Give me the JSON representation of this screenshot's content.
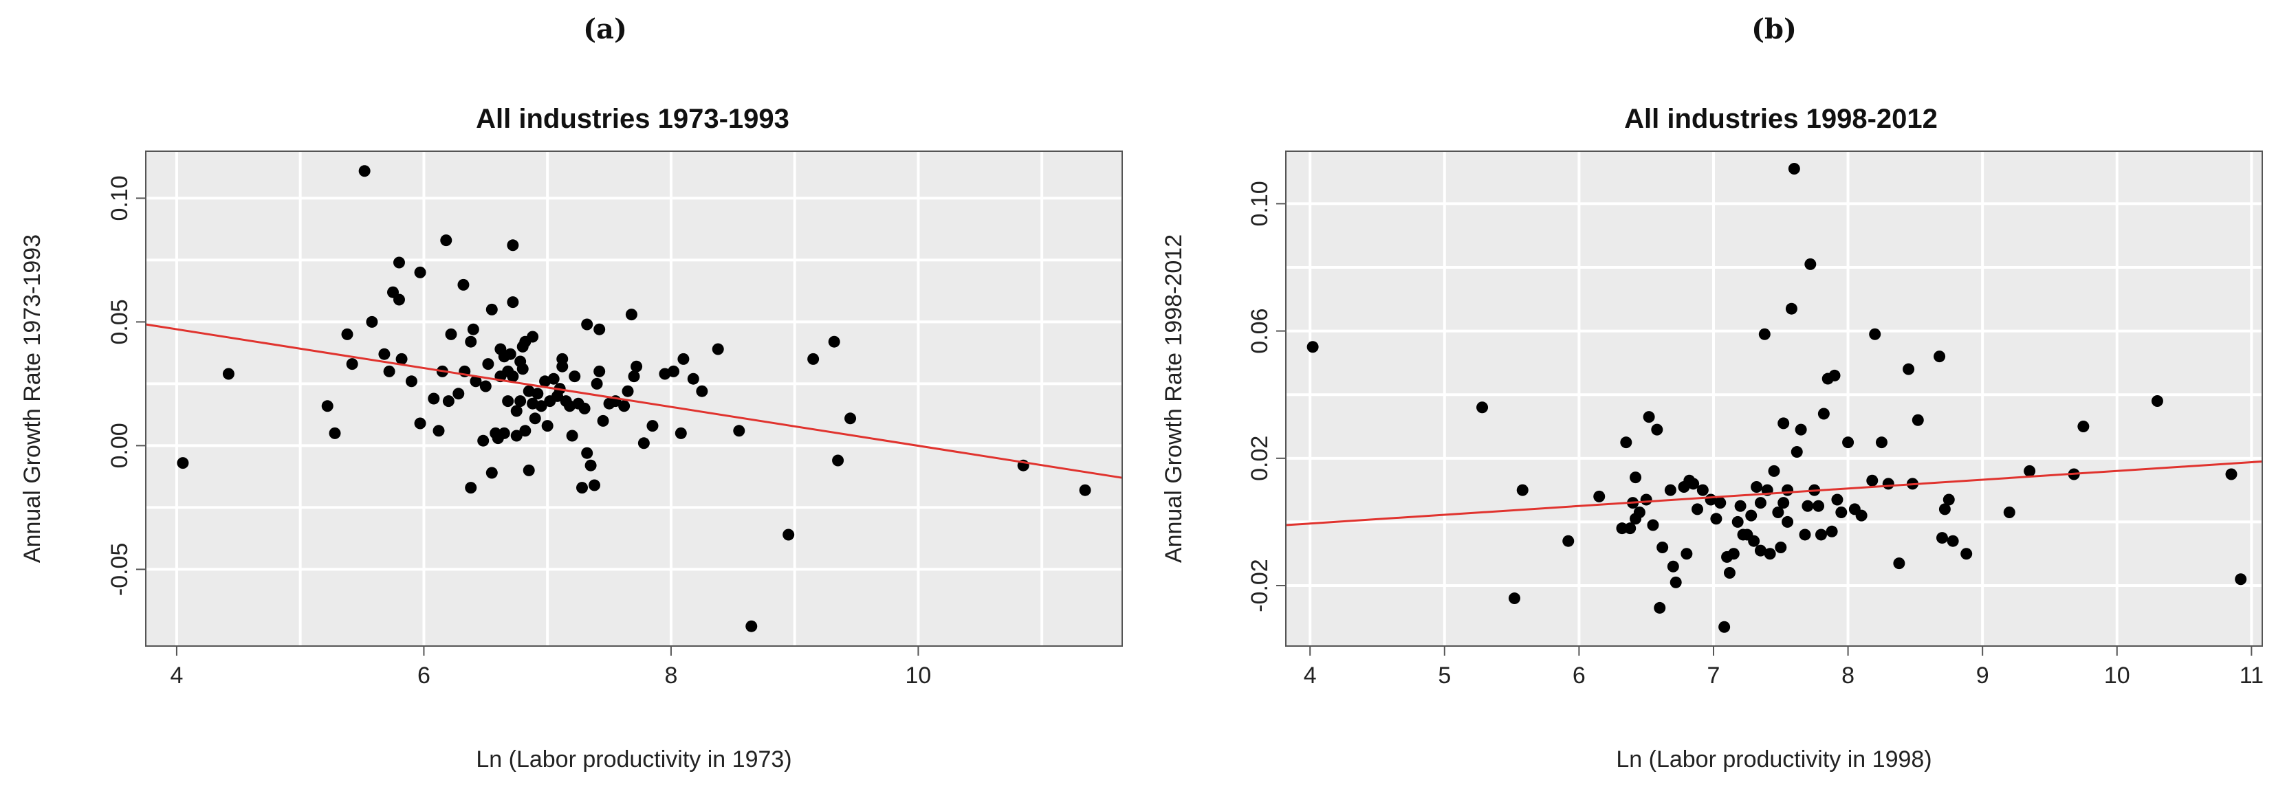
{
  "panels": [
    {
      "letter": "(a)"
    },
    {
      "letter": "(b)"
    }
  ],
  "chart_data": [
    {
      "type": "scatter",
      "title": "All industries 1973-1993",
      "xlabel": "Ln (Labor productivity in 1973)",
      "ylabel": "Annual Growth Rate 1973-1993",
      "xlim": [
        3.75,
        11.65
      ],
      "ylim": [
        -0.081,
        0.119
      ],
      "xticks": [
        4,
        6,
        8,
        10
      ],
      "xtick_labels": [
        "4",
        "6",
        "8",
        "10"
      ],
      "yticks": [
        -0.05,
        0.0,
        0.05,
        0.1
      ],
      "ytick_labels": [
        "-0.05",
        "0.00",
        "0.05",
        "0.10"
      ],
      "xgrid": [
        5,
        7,
        9,
        11
      ],
      "ygrid": [
        -0.025,
        0.025,
        0.075
      ],
      "grid": true,
      "background": "#ebebeb",
      "point_color": "#000000",
      "regression_color": "#e0332e",
      "regression_line": {
        "x": [
          3.75,
          11.65
        ],
        "y": [
          0.049,
          -0.013
        ]
      },
      "points": [
        [
          4.05,
          -0.007
        ],
        [
          4.42,
          0.029
        ],
        [
          5.22,
          0.016
        ],
        [
          5.28,
          0.005
        ],
        [
          5.38,
          0.045
        ],
        [
          5.42,
          0.033
        ],
        [
          5.52,
          0.111
        ],
        [
          5.58,
          0.05
        ],
        [
          5.68,
          0.037
        ],
        [
          5.72,
          0.03
        ],
        [
          5.75,
          0.062
        ],
        [
          5.8,
          0.074
        ],
        [
          5.82,
          0.035
        ],
        [
          5.8,
          0.059
        ],
        [
          5.9,
          0.026
        ],
        [
          5.97,
          0.07
        ],
        [
          5.97,
          0.009
        ],
        [
          6.08,
          0.019
        ],
        [
          6.12,
          0.006
        ],
        [
          6.15,
          0.03
        ],
        [
          6.18,
          0.083
        ],
        [
          6.2,
          0.018
        ],
        [
          6.22,
          0.045
        ],
        [
          6.28,
          0.021
        ],
        [
          6.32,
          0.065
        ],
        [
          6.33,
          0.03
        ],
        [
          6.38,
          -0.017
        ],
        [
          6.38,
          0.042
        ],
        [
          6.4,
          0.047
        ],
        [
          6.42,
          0.026
        ],
        [
          6.48,
          0.002
        ],
        [
          6.5,
          0.024
        ],
        [
          6.52,
          0.033
        ],
        [
          6.55,
          0.055
        ],
        [
          6.55,
          -0.011
        ],
        [
          6.58,
          0.005
        ],
        [
          6.6,
          0.003
        ],
        [
          6.62,
          0.039
        ],
        [
          6.62,
          0.028
        ],
        [
          6.65,
          0.005
        ],
        [
          6.65,
          0.036
        ],
        [
          6.68,
          0.03
        ],
        [
          6.68,
          0.018
        ],
        [
          6.7,
          0.037
        ],
        [
          6.72,
          0.028
        ],
        [
          6.72,
          0.081
        ],
        [
          6.72,
          0.058
        ],
        [
          6.75,
          0.014
        ],
        [
          6.75,
          0.004
        ],
        [
          6.78,
          0.034
        ],
        [
          6.78,
          0.018
        ],
        [
          6.8,
          0.04
        ],
        [
          6.8,
          0.031
        ],
        [
          6.82,
          0.042
        ],
        [
          6.82,
          0.006
        ],
        [
          6.85,
          0.022
        ],
        [
          6.85,
          -0.01
        ],
        [
          6.88,
          0.044
        ],
        [
          6.88,
          0.017
        ],
        [
          6.9,
          0.011
        ],
        [
          6.92,
          0.021
        ],
        [
          6.95,
          0.016
        ],
        [
          6.98,
          0.026
        ],
        [
          7.0,
          0.008
        ],
        [
          7.02,
          0.018
        ],
        [
          7.05,
          0.027
        ],
        [
          7.08,
          0.02
        ],
        [
          7.1,
          0.023
        ],
        [
          7.12,
          0.032
        ],
        [
          7.12,
          0.035
        ],
        [
          7.15,
          0.018
        ],
        [
          7.18,
          0.016
        ],
        [
          7.2,
          0.004
        ],
        [
          7.22,
          0.028
        ],
        [
          7.25,
          0.017
        ],
        [
          7.28,
          -0.017
        ],
        [
          7.3,
          0.015
        ],
        [
          7.32,
          -0.003
        ],
        [
          7.32,
          0.049
        ],
        [
          7.35,
          -0.008
        ],
        [
          7.38,
          -0.016
        ],
        [
          7.4,
          0.025
        ],
        [
          7.42,
          0.047
        ],
        [
          7.42,
          0.03
        ],
        [
          7.45,
          0.01
        ],
        [
          7.5,
          0.017
        ],
        [
          7.55,
          0.018
        ],
        [
          7.62,
          0.016
        ],
        [
          7.65,
          0.022
        ],
        [
          7.68,
          0.053
        ],
        [
          7.7,
          0.028
        ],
        [
          7.72,
          0.032
        ],
        [
          7.78,
          0.001
        ],
        [
          7.85,
          0.008
        ],
        [
          7.95,
          0.029
        ],
        [
          8.02,
          0.03
        ],
        [
          8.08,
          0.005
        ],
        [
          8.1,
          0.035
        ],
        [
          8.18,
          0.027
        ],
        [
          8.25,
          0.022
        ],
        [
          8.38,
          0.039
        ],
        [
          8.55,
          0.006
        ],
        [
          8.65,
          -0.073
        ],
        [
          8.95,
          -0.036
        ],
        [
          9.15,
          0.035
        ],
        [
          9.32,
          0.042
        ],
        [
          9.35,
          -0.006
        ],
        [
          9.45,
          0.011
        ],
        [
          10.85,
          -0.008
        ],
        [
          11.35,
          -0.018
        ]
      ]
    },
    {
      "type": "scatter",
      "title": "All industries 1998-2012",
      "xlabel": "Ln (Labor productivity in 1998)",
      "ylabel": "Annual Growth Rate 1998-2012",
      "xlim": [
        3.82,
        11.08
      ],
      "ylim": [
        -0.039,
        0.1165
      ],
      "xticks": [
        4,
        5,
        6,
        7,
        8,
        9,
        10,
        11
      ],
      "xtick_labels": [
        "4",
        "5",
        "6",
        "7",
        "8",
        "9",
        "10",
        "11"
      ],
      "yticks": [
        -0.02,
        0.02,
        0.06,
        0.1
      ],
      "ytick_labels": [
        "-0.02",
        "0.02",
        "0.06",
        "0.10"
      ],
      "xgrid": [],
      "ygrid": [
        0.0,
        0.04,
        0.08
      ],
      "grid": true,
      "background": "#ebebeb",
      "point_color": "#000000",
      "regression_color": "#e0332e",
      "regression_line": {
        "x": [
          3.82,
          11.08
        ],
        "y": [
          -0.001,
          0.019
        ]
      },
      "points": [
        [
          4.02,
          0.055
        ],
        [
          5.28,
          0.036
        ],
        [
          5.52,
          -0.024
        ],
        [
          5.58,
          0.01
        ],
        [
          5.92,
          -0.006
        ],
        [
          6.15,
          0.008
        ],
        [
          6.32,
          -0.002
        ],
        [
          6.35,
          0.025
        ],
        [
          6.38,
          -0.002
        ],
        [
          6.4,
          0.006
        ],
        [
          6.42,
          0.014
        ],
        [
          6.42,
          0.001
        ],
        [
          6.45,
          0.003
        ],
        [
          6.5,
          0.007
        ],
        [
          6.52,
          0.033
        ],
        [
          6.55,
          -0.001
        ],
        [
          6.58,
          0.029
        ],
        [
          6.6,
          -0.027
        ],
        [
          6.62,
          -0.008
        ],
        [
          6.68,
          0.01
        ],
        [
          6.7,
          -0.014
        ],
        [
          6.72,
          -0.019
        ],
        [
          6.78,
          0.011
        ],
        [
          6.8,
          -0.01
        ],
        [
          6.82,
          0.013
        ],
        [
          6.85,
          0.012
        ],
        [
          6.88,
          0.004
        ],
        [
          6.92,
          0.01
        ],
        [
          6.98,
          0.007
        ],
        [
          7.02,
          0.001
        ],
        [
          7.05,
          0.006
        ],
        [
          7.08,
          -0.033
        ],
        [
          7.1,
          -0.011
        ],
        [
          7.12,
          -0.016
        ],
        [
          7.15,
          -0.01
        ],
        [
          7.18,
          0.0
        ],
        [
          7.2,
          0.005
        ],
        [
          7.22,
          -0.004
        ],
        [
          7.25,
          -0.004
        ],
        [
          7.28,
          0.002
        ],
        [
          7.3,
          -0.006
        ],
        [
          7.32,
          0.011
        ],
        [
          7.35,
          -0.009
        ],
        [
          7.35,
          0.006
        ],
        [
          7.38,
          0.059
        ],
        [
          7.4,
          0.01
        ],
        [
          7.42,
          -0.01
        ],
        [
          7.45,
          0.016
        ],
        [
          7.48,
          0.003
        ],
        [
          7.5,
          -0.008
        ],
        [
          7.52,
          0.031
        ],
        [
          7.52,
          0.006
        ],
        [
          7.55,
          0.01
        ],
        [
          7.55,
          0.0
        ],
        [
          7.58,
          0.067
        ],
        [
          7.6,
          0.111
        ],
        [
          7.62,
          0.022
        ],
        [
          7.65,
          0.029
        ],
        [
          7.68,
          -0.004
        ],
        [
          7.7,
          0.005
        ],
        [
          7.72,
          0.081
        ],
        [
          7.75,
          0.01
        ],
        [
          7.78,
          0.005
        ],
        [
          7.8,
          -0.004
        ],
        [
          7.82,
          0.034
        ],
        [
          7.85,
          0.045
        ],
        [
          7.88,
          -0.003
        ],
        [
          7.9,
          0.046
        ],
        [
          7.92,
          0.007
        ],
        [
          7.95,
          0.003
        ],
        [
          8.0,
          0.025
        ],
        [
          8.05,
          0.004
        ],
        [
          8.1,
          0.002
        ],
        [
          8.18,
          0.013
        ],
        [
          8.2,
          0.059
        ],
        [
          8.25,
          0.025
        ],
        [
          8.3,
          0.012
        ],
        [
          8.38,
          -0.013
        ],
        [
          8.45,
          0.048
        ],
        [
          8.48,
          0.012
        ],
        [
          8.52,
          0.032
        ],
        [
          8.68,
          0.052
        ],
        [
          8.7,
          -0.005
        ],
        [
          8.72,
          0.004
        ],
        [
          8.75,
          0.007
        ],
        [
          8.78,
          -0.006
        ],
        [
          8.88,
          -0.01
        ],
        [
          9.2,
          0.003
        ],
        [
          9.35,
          0.016
        ],
        [
          9.68,
          0.015
        ],
        [
          9.75,
          0.03
        ],
        [
          10.3,
          0.038
        ],
        [
          10.85,
          0.015
        ],
        [
          10.92,
          -0.018
        ]
      ]
    }
  ]
}
